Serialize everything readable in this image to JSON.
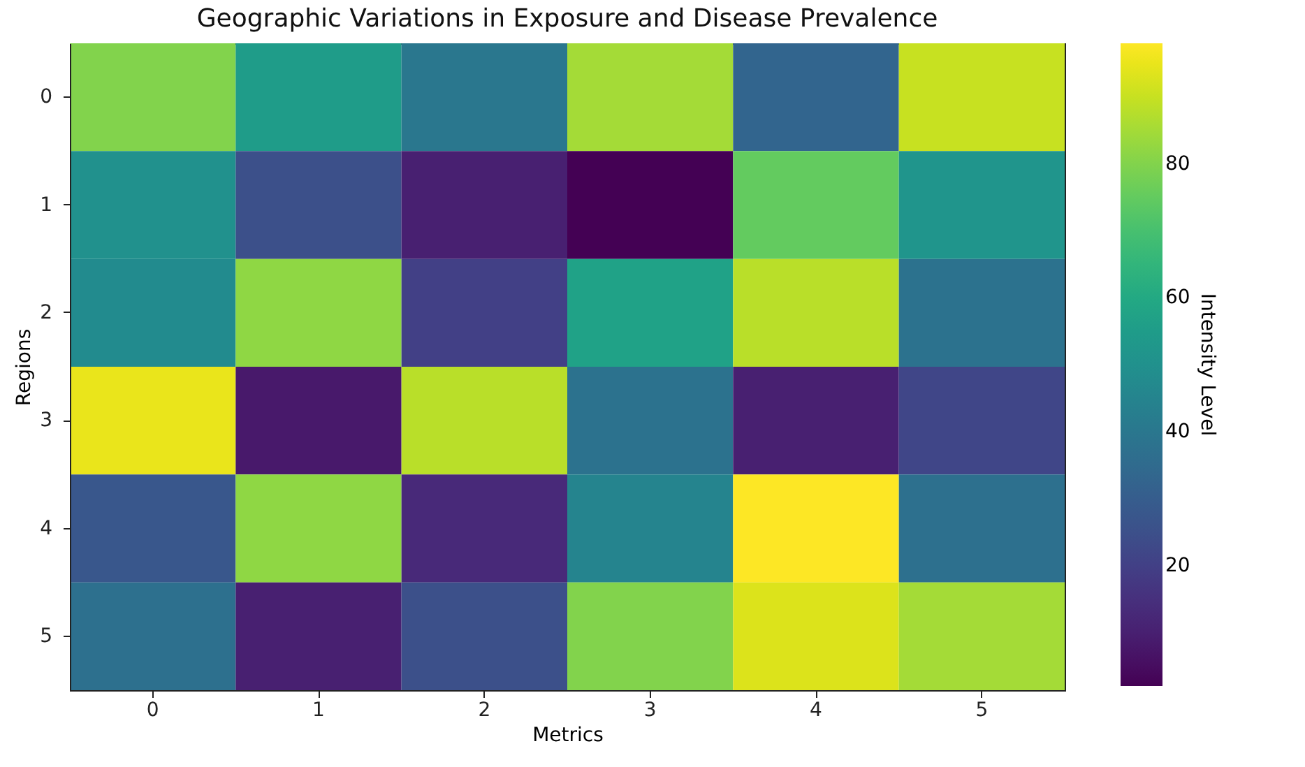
{
  "chart_data": {
    "type": "heatmap",
    "title": "Geographic Variations in Exposure and Disease Prevalence",
    "xlabel": "Metrics",
    "ylabel": "Regions",
    "clabel": "Intensity Level",
    "categories": [
      "0",
      "1",
      "2",
      "3",
      "4",
      "5"
    ],
    "y_categories": [
      "0",
      "1",
      "2",
      "3",
      "4",
      "5"
    ],
    "cells": [
      [
        80,
        55,
        40,
        85,
        33,
        90
      ],
      [
        50,
        25,
        10,
        2,
        75,
        52
      ],
      [
        48,
        82,
        20,
        57,
        88,
        38
      ],
      [
        95,
        8,
        88,
        38,
        10,
        22
      ],
      [
        28,
        82,
        13,
        45,
        98,
        37
      ],
      [
        37,
        10,
        25,
        80,
        93,
        85
      ]
    ],
    "clim": [
      2,
      98
    ],
    "cticks": [
      20,
      40,
      60,
      80
    ]
  }
}
